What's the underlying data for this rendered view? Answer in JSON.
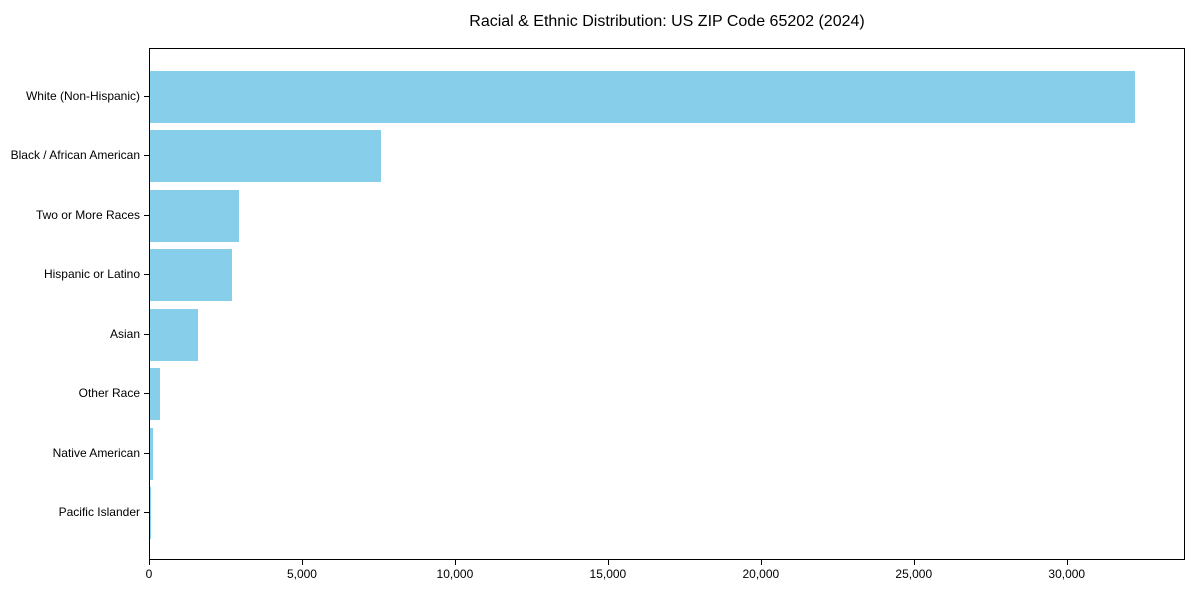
{
  "chart_data": {
    "type": "bar",
    "orientation": "horizontal",
    "title": "Racial & Ethnic Distribution: US ZIP Code 65202 (2024)",
    "categories": [
      "White (Non-Hispanic)",
      "Black / African American",
      "Two or More Races",
      "Hispanic or Latino",
      "Asian",
      "Other Race",
      "Native American",
      "Pacific Islander"
    ],
    "values": [
      32200,
      7560,
      2900,
      2680,
      1560,
      320,
      100,
      20
    ],
    "xlim": [
      0,
      33800
    ],
    "x_ticks": [
      0,
      5000,
      10000,
      15000,
      20000,
      25000,
      30000
    ],
    "x_tick_labels": [
      "0",
      "5,000",
      "10,000",
      "15,000",
      "20,000",
      "25,000",
      "30,000"
    ],
    "xlabel": "",
    "ylabel": "",
    "grid": false,
    "legend": null,
    "colors": {
      "bar": "#87CEEB",
      "axis": "#000000",
      "text": "#000000",
      "background": "#ffffff"
    }
  }
}
